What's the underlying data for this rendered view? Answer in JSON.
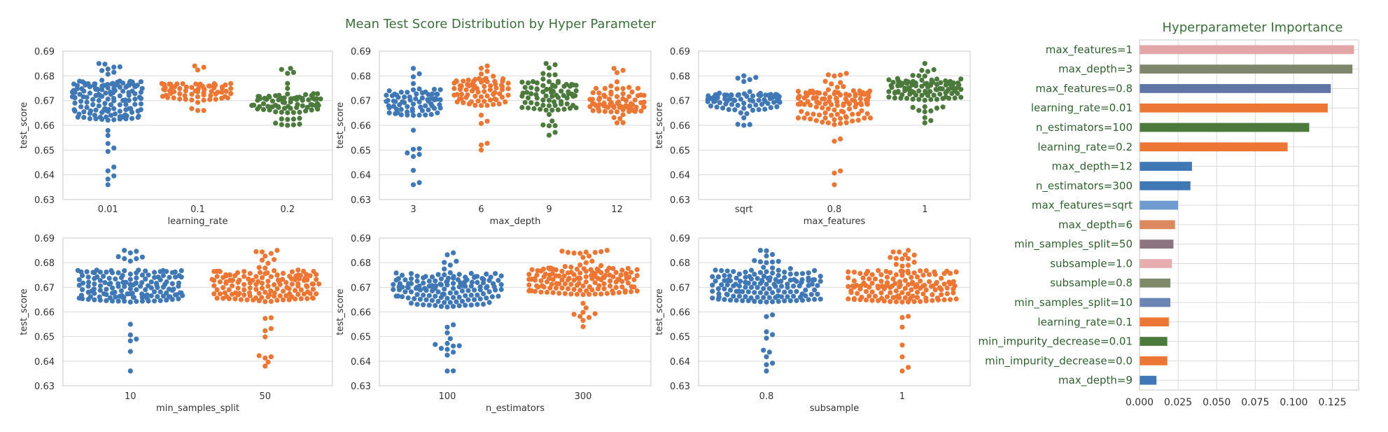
{
  "figure_title": "Mean Test Score Distribution by Hyper Parameter",
  "colors": {
    "blue": "#3f78b4",
    "orange": "#ec7735",
    "green": "#4c7a3d",
    "title_green": "#3c6e3c",
    "grid": "#d9d9d9",
    "frame": "#c8c8c8"
  },
  "chart_data": [
    {
      "type": "swarm",
      "xlabel": "learning_rate",
      "ylabel": "test_score",
      "ylim": [
        0.63,
        0.69
      ],
      "yticks": [
        "0.63",
        "0.64",
        "0.65",
        "0.66",
        "0.67",
        "0.68",
        "0.69"
      ],
      "categories": [
        {
          "label": "0.01",
          "color": "blue",
          "n": 160,
          "min": 0.636,
          "q1": 0.662,
          "median": 0.672,
          "q3": 0.678,
          "max": 0.685
        },
        {
          "label": "0.1",
          "color": "orange",
          "n": 70,
          "min": 0.666,
          "q1": 0.67,
          "median": 0.674,
          "q3": 0.677,
          "max": 0.684
        },
        {
          "label": "0.2",
          "color": "green",
          "n": 80,
          "min": 0.66,
          "q1": 0.665,
          "median": 0.669,
          "q3": 0.673,
          "max": 0.683
        }
      ]
    },
    {
      "type": "swarm",
      "xlabel": "max_depth",
      "ylabel": "test_score",
      "ylim": [
        0.63,
        0.69
      ],
      "yticks": [
        "0.63",
        "0.64",
        "0.65",
        "0.66",
        "0.67",
        "0.68",
        "0.69"
      ],
      "categories": [
        {
          "label": "3",
          "color": "blue",
          "n": 80,
          "min": 0.636,
          "q1": 0.664,
          "median": 0.67,
          "q3": 0.675,
          "max": 0.683
        },
        {
          "label": "6",
          "color": "orange",
          "n": 80,
          "min": 0.65,
          "q1": 0.668,
          "median": 0.674,
          "q3": 0.679,
          "max": 0.684
        },
        {
          "label": "9",
          "color": "green",
          "n": 80,
          "min": 0.656,
          "q1": 0.666,
          "median": 0.673,
          "q3": 0.678,
          "max": 0.685
        },
        {
          "label": "12",
          "color": "orange",
          "n": 80,
          "min": 0.661,
          "q1": 0.665,
          "median": 0.67,
          "q3": 0.676,
          "max": 0.683
        }
      ]
    },
    {
      "type": "swarm",
      "xlabel": "max_features",
      "ylabel": "test_score",
      "ylim": [
        0.63,
        0.69
      ],
      "yticks": [
        "0.63",
        "0.64",
        "0.65",
        "0.66",
        "0.67",
        "0.68",
        "0.69"
      ],
      "categories": [
        {
          "label": "sqrt",
          "color": "blue",
          "n": 80,
          "min": 0.66,
          "q1": 0.666,
          "median": 0.67,
          "q3": 0.673,
          "max": 0.68
        },
        {
          "label": "0.8",
          "color": "orange",
          "n": 120,
          "min": 0.636,
          "q1": 0.66,
          "median": 0.668,
          "q3": 0.674,
          "max": 0.681
        },
        {
          "label": "1",
          "color": "green",
          "n": 120,
          "min": 0.661,
          "q1": 0.67,
          "median": 0.675,
          "q3": 0.679,
          "max": 0.685
        }
      ]
    },
    {
      "type": "swarm",
      "xlabel": "min_samples_split",
      "ylabel": "test_score",
      "ylim": [
        0.63,
        0.69
      ],
      "yticks": [
        "0.63",
        "0.64",
        "0.65",
        "0.66",
        "0.67",
        "0.68",
        "0.69"
      ],
      "categories": [
        {
          "label": "10",
          "color": "blue",
          "n": 160,
          "min": 0.636,
          "q1": 0.664,
          "median": 0.671,
          "q3": 0.677,
          "max": 0.685
        },
        {
          "label": "50",
          "color": "orange",
          "n": 160,
          "min": 0.638,
          "q1": 0.664,
          "median": 0.671,
          "q3": 0.677,
          "max": 0.685
        }
      ]
    },
    {
      "type": "swarm",
      "xlabel": "n_estimators",
      "ylabel": "test_score",
      "ylim": [
        0.63,
        0.69
      ],
      "yticks": [
        "0.63",
        "0.64",
        "0.65",
        "0.66",
        "0.67",
        "0.68",
        "0.69"
      ],
      "categories": [
        {
          "label": "100",
          "color": "blue",
          "n": 160,
          "min": 0.636,
          "q1": 0.662,
          "median": 0.67,
          "q3": 0.676,
          "max": 0.684
        },
        {
          "label": "300",
          "color": "orange",
          "n": 160,
          "min": 0.654,
          "q1": 0.667,
          "median": 0.673,
          "q3": 0.678,
          "max": 0.685
        }
      ]
    },
    {
      "type": "swarm",
      "xlabel": "subsample",
      "ylabel": "test_score",
      "ylim": [
        0.63,
        0.69
      ],
      "yticks": [
        "0.63",
        "0.64",
        "0.65",
        "0.66",
        "0.67",
        "0.68",
        "0.69"
      ],
      "categories": [
        {
          "label": "0.8",
          "color": "blue",
          "n": 160,
          "min": 0.636,
          "q1": 0.664,
          "median": 0.671,
          "q3": 0.677,
          "max": 0.685
        },
        {
          "label": "1",
          "color": "orange",
          "n": 160,
          "min": 0.636,
          "q1": 0.664,
          "median": 0.671,
          "q3": 0.677,
          "max": 0.685
        }
      ]
    },
    {
      "type": "bar",
      "orientation": "horizontal",
      "title": "Hyperparameter Importance",
      "xlim": [
        0,
        0.142
      ],
      "xticks": [
        "0.000",
        "0.025",
        "0.050",
        "0.075",
        "0.100",
        "0.125"
      ],
      "categories": [
        "max_features=1",
        "max_depth=3",
        "max_features=0.8",
        "learning_rate=0.01",
        "n_estimators=100",
        "learning_rate=0.2",
        "max_depth=12",
        "n_estimators=300",
        "max_features=sqrt",
        "max_depth=6",
        "min_samples_split=50",
        "subsample=1.0",
        "subsample=0.8",
        "min_samples_split=10",
        "learning_rate=0.1",
        "min_impurity_decrease=0.01",
        "min_impurity_decrease=0.0",
        "max_depth=9"
      ],
      "values": [
        0.139,
        0.138,
        0.124,
        0.122,
        0.11,
        0.096,
        0.034,
        0.033,
        0.025,
        0.023,
        0.022,
        0.021,
        0.02,
        0.02,
        0.019,
        0.018,
        0.018,
        0.011
      ],
      "bar_colors": [
        "#e4a5a8",
        "#7e866d",
        "#6077a6",
        "#ec7735",
        "#4c7a3d",
        "#ec7735",
        "#3f78b4",
        "#3f78b4",
        "#6f9bd1",
        "#dc8a5d",
        "#8c7480",
        "#e8adb0",
        "#7f8a6a",
        "#6e86b6",
        "#ec7735",
        "#4c7a3d",
        "#ec7735",
        "#3f78b4"
      ]
    }
  ]
}
